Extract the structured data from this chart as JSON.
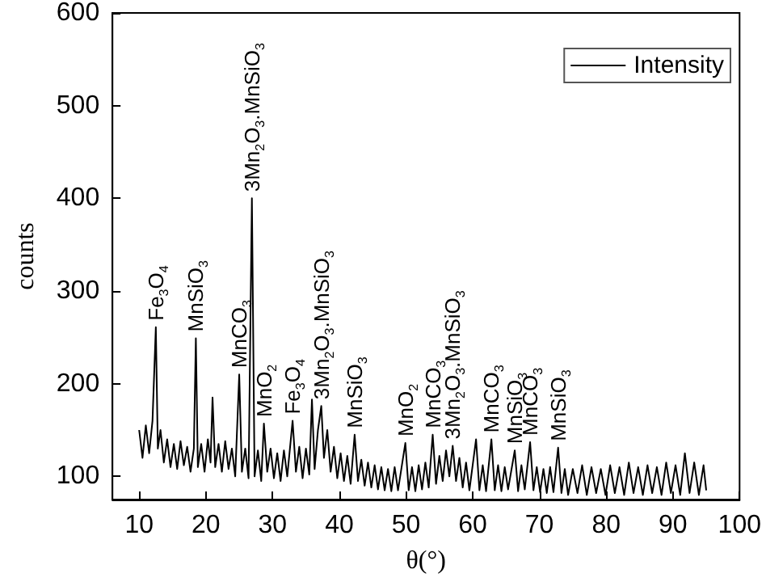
{
  "chart_data": {
    "type": "line",
    "xlabel": "θ(°)",
    "ylabel": "counts",
    "xlim": [
      6,
      100
    ],
    "xticks": [
      10,
      20,
      30,
      40,
      50,
      60,
      70,
      80,
      90,
      100
    ],
    "ylim": [
      75,
      600
    ],
    "yticks": [
      100,
      200,
      300,
      400,
      500,
      600
    ],
    "grid": false,
    "legend": "top right",
    "marker": "none",
    "line_style": "solid",
    "series": [
      {
        "name": "Intensity",
        "color": "#000000",
        "x": [
          10,
          10.5,
          11,
          11.5,
          12,
          12.5,
          12.8,
          13.2,
          13.7,
          14.2,
          14.7,
          15.2,
          15.7,
          16.2,
          16.7,
          17.2,
          17.7,
          18.2,
          18.5,
          18.8,
          19.3,
          19.8,
          20.3,
          20.7,
          21,
          21.4,
          21.9,
          22.4,
          22.9,
          23.4,
          23.9,
          24.4,
          25,
          25.4,
          25.9,
          26.4,
          26.9,
          27.3,
          27.8,
          28.3,
          28.7,
          29.2,
          29.7,
          30.2,
          30.7,
          31.2,
          31.7,
          32.2,
          33,
          33.5,
          34,
          34.5,
          35,
          35.5,
          35.9,
          36.3,
          36.8,
          37.3,
          37.7,
          38.2,
          38.7,
          39.2,
          39.7,
          40.2,
          40.7,
          41.2,
          41.7,
          42.3,
          42.8,
          43.3,
          43.8,
          44.3,
          44.8,
          45.3,
          45.8,
          46.3,
          46.8,
          47.3,
          47.8,
          48.3,
          48.8,
          49.3,
          49.9,
          50.4,
          50.9,
          51.4,
          51.9,
          52.4,
          52.9,
          53.4,
          54,
          54.5,
          55,
          55.5,
          56,
          56.5,
          57,
          57.5,
          58,
          58.5,
          59,
          59.5,
          60.5,
          61,
          61.5,
          62,
          62.8,
          63.3,
          63.8,
          64.3,
          64.8,
          65.3,
          66.3,
          66.8,
          67.3,
          67.8,
          68.6,
          69.1,
          69.6,
          70.1,
          70.6,
          71.1,
          71.6,
          72.1,
          72.8,
          73.3,
          73.8,
          74.3,
          75,
          75.7,
          76.4,
          77.1,
          77.8,
          78.5,
          79.2,
          79.9,
          80.6,
          81.3,
          82,
          82.7,
          83.4,
          84.1,
          84.8,
          85.5,
          86.2,
          86.9,
          87.6,
          88.3,
          89,
          89.7,
          90.4,
          91.1,
          91.8,
          92.5,
          93.2,
          93.9,
          94.6,
          95
        ],
        "values": [
          150,
          120,
          155,
          125,
          160,
          261,
          130,
          150,
          115,
          140,
          110,
          135,
          108,
          138,
          112,
          132,
          105,
          130,
          249,
          110,
          135,
          105,
          140,
          115,
          185,
          110,
          135,
          105,
          138,
          108,
          130,
          100,
          210,
          105,
          130,
          98,
          400,
          100,
          128,
          95,
          157,
          105,
          130,
          98,
          125,
          95,
          128,
          100,
          160,
          105,
          132,
          98,
          130,
          102,
          183,
          108,
          150,
          176,
          120,
          150,
          105,
          132,
          98,
          125,
          95,
          122,
          92,
          145,
          95,
          118,
          90,
          115,
          88,
          112,
          86,
          110,
          85,
          108,
          84,
          110,
          85,
          108,
          136,
          85,
          110,
          84,
          112,
          86,
          115,
          88,
          145,
          92,
          122,
          95,
          128,
          100,
          133,
          95,
          120,
          88,
          115,
          85,
          140,
          85,
          112,
          84,
          140,
          85,
          112,
          84,
          110,
          86,
          128,
          84,
          112,
          86,
          137,
          85,
          110,
          83,
          108,
          82,
          110,
          83,
          131,
          82,
          108,
          80,
          108,
          82,
          112,
          80,
          110,
          82,
          108,
          80,
          112,
          82,
          110,
          80,
          115,
          82,
          110,
          80,
          112,
          82,
          110,
          80,
          115,
          82,
          112,
          80,
          125,
          82,
          115,
          80,
          112,
          85
        ]
      }
    ],
    "annotations": [
      {
        "text": "Fe$_{3}$O$_{4}$",
        "x": 12.5,
        "y": 261
      },
      {
        "text": "MnSiO$_{3}$",
        "x": 18.5,
        "y": 249
      },
      {
        "text": "MnCO$_{3}$",
        "x": 25,
        "y": 210
      },
      {
        "text": "3Mn$_{2}$O$_{3}$.MnSiO$_{3}$",
        "x": 26.9,
        "y": 400
      },
      {
        "text": "MnO$_{2}$",
        "x": 28.7,
        "y": 157
      },
      {
        "text": "Fe$_{3}$O$_{4}$",
        "x": 33,
        "y": 160
      },
      {
        "text": "3Mn$_{2}$O$_{3}$.MnSiO$_{3}$",
        "x": 37.3,
        "y": 176
      },
      {
        "text": "MnSiO$_{3}$",
        "x": 42.3,
        "y": 145
      },
      {
        "text": "MnO$_{2}$",
        "x": 49.9,
        "y": 136
      },
      {
        "text": "MnCO$_{3}$",
        "x": 54,
        "y": 145
      },
      {
        "text": "3Mn$_{2}$O$_{3}$.MnSiO$_{3}$",
        "x": 57,
        "y": 133
      },
      {
        "text": "MnCO$_{3}$",
        "x": 62.8,
        "y": 140
      },
      {
        "text": "MnSiO$_{3}$",
        "x": 66.3,
        "y": 128
      },
      {
        "text": "MnCO$_{3}$",
        "x": 68.6,
        "y": 137
      },
      {
        "text": "MnSiO$_{3}$",
        "x": 72.8,
        "y": 131
      }
    ]
  }
}
